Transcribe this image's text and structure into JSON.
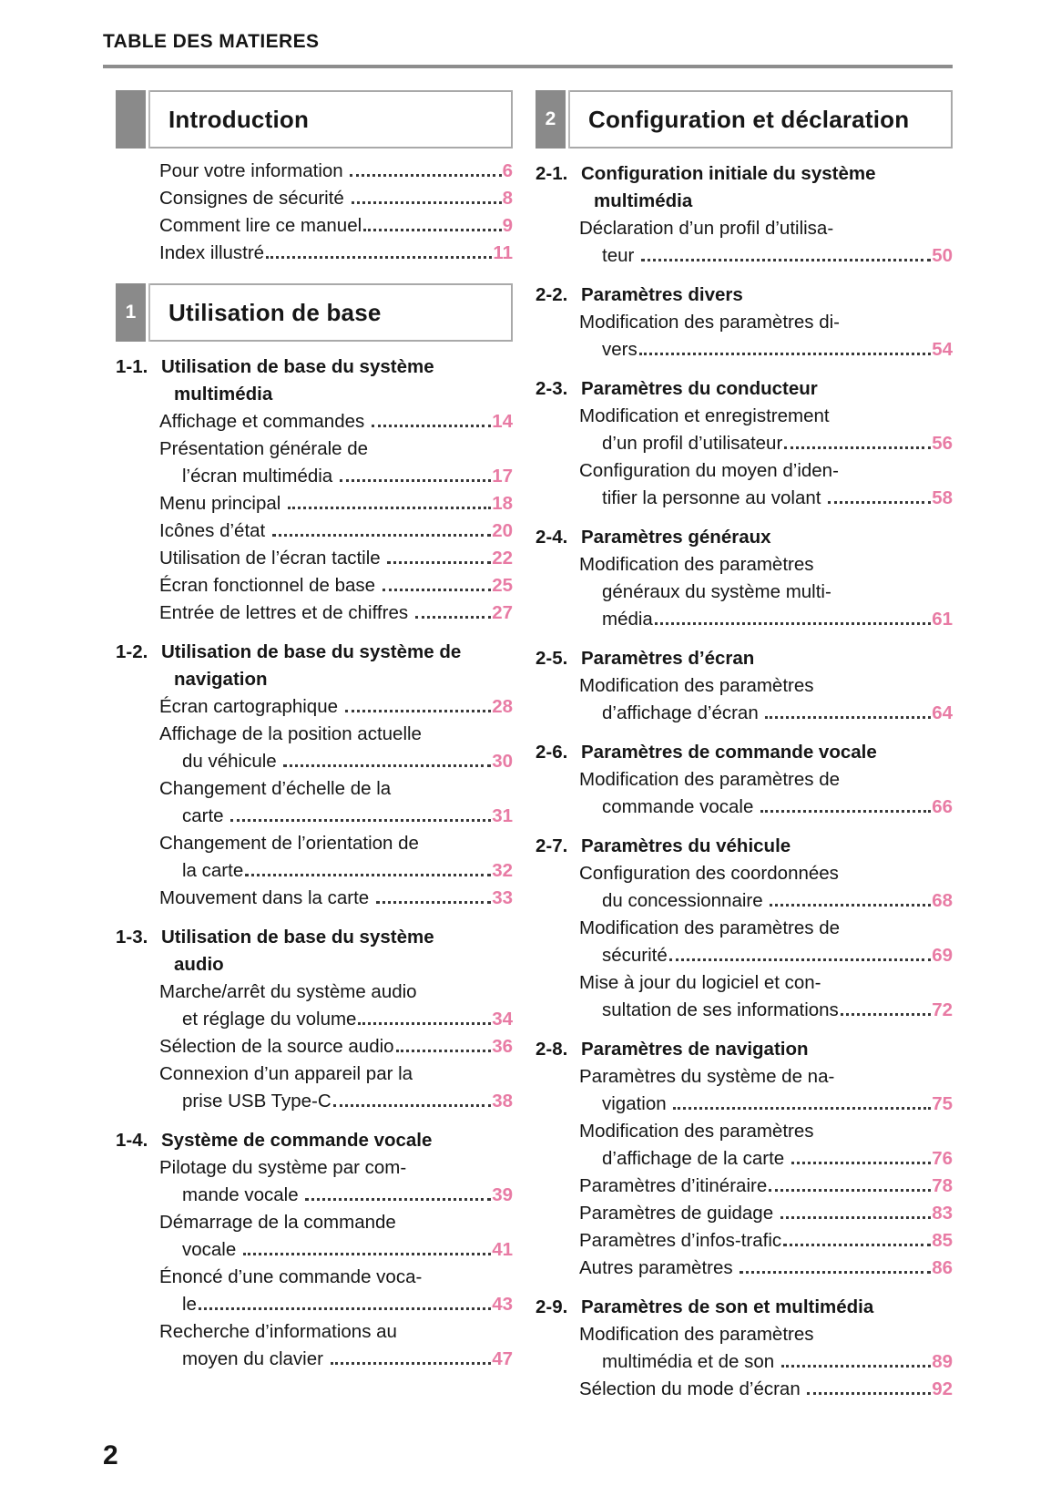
{
  "header": {
    "title": "TABLE DES MATIERES"
  },
  "footer": {
    "page_number": "2"
  },
  "colors": {
    "page_ref_pink": "#e87ba4",
    "tab_gray": "#8a8a8a",
    "rule_gray": "#8d8d8d"
  },
  "columns": [
    {
      "sections": [
        {
          "tab": "",
          "title": "Introduction",
          "blocks": [
            {
              "type": "entry",
              "lines": [
                "Pour votre information "
              ],
              "page": "6"
            },
            {
              "type": "entry",
              "lines": [
                "Consignes de sécurité "
              ],
              "page": "8"
            },
            {
              "type": "entry",
              "lines": [
                "Comment lire ce manuel"
              ],
              "page": "9"
            },
            {
              "type": "entry",
              "lines": [
                "Index illustré"
              ],
              "page": "11"
            }
          ]
        },
        {
          "tab": "1",
          "title": "Utilisation de base",
          "blocks": [
            {
              "type": "subheading",
              "num": "1-1.",
              "lines": [
                "Utilisation de base du système",
                "multimédia"
              ]
            },
            {
              "type": "entry",
              "lines": [
                "Affichage et commandes "
              ],
              "page": "14"
            },
            {
              "type": "entry",
              "lines": [
                "Présentation générale de",
                "l’écran multimédia "
              ],
              "page": "17"
            },
            {
              "type": "entry",
              "lines": [
                "Menu principal "
              ],
              "page": "18"
            },
            {
              "type": "entry",
              "lines": [
                "Icônes d’état "
              ],
              "page": "20"
            },
            {
              "type": "entry",
              "lines": [
                "Utilisation de l’écran tactile "
              ],
              "page": "22"
            },
            {
              "type": "entry",
              "lines": [
                "Écran fonctionnel de base "
              ],
              "page": "25"
            },
            {
              "type": "entry",
              "lines": [
                "Entrée de lettres et de chiffres "
              ],
              "page": "27"
            },
            {
              "type": "subheading",
              "num": "1-2.",
              "lines": [
                "Utilisation de base du système de",
                "navigation"
              ]
            },
            {
              "type": "entry",
              "lines": [
                "Écran cartographique "
              ],
              "page": "28"
            },
            {
              "type": "entry",
              "lines": [
                "Affichage de la position actuelle",
                "du véhicule "
              ],
              "page": "30"
            },
            {
              "type": "entry",
              "lines": [
                "Changement d’échelle de la",
                "carte "
              ],
              "page": "31"
            },
            {
              "type": "entry",
              "lines": [
                "Changement de l’orientation de",
                "la carte"
              ],
              "page": "32"
            },
            {
              "type": "entry",
              "lines": [
                "Mouvement dans la carte "
              ],
              "page": "33"
            },
            {
              "type": "subheading",
              "num": "1-3.",
              "lines": [
                "Utilisation de base du système",
                "audio"
              ]
            },
            {
              "type": "entry",
              "lines": [
                "Marche/arrêt du système audio",
                "et réglage du volume"
              ],
              "page": "34"
            },
            {
              "type": "entry",
              "lines": [
                "Sélection de la source audio"
              ],
              "page": "36"
            },
            {
              "type": "entry",
              "lines": [
                "Connexion d’un appareil par la",
                "prise USB Type-C"
              ],
              "page": "38"
            },
            {
              "type": "subheading",
              "num": "1-4.",
              "lines": [
                "Système de commande vocale"
              ]
            },
            {
              "type": "entry",
              "lines": [
                "Pilotage du système par com-",
                "mande vocale "
              ],
              "page": "39"
            },
            {
              "type": "entry",
              "lines": [
                "Démarrage de la commande",
                "vocale "
              ],
              "page": "41"
            },
            {
              "type": "entry",
              "lines": [
                "Énoncé d’une commande voca-",
                "le"
              ],
              "page": "43"
            },
            {
              "type": "entry",
              "lines": [
                "Recherche d’informations au",
                "moyen du clavier "
              ],
              "page": "47"
            }
          ]
        }
      ]
    },
    {
      "sections": [
        {
          "tab": "2",
          "title": "Configuration et déclaration",
          "blocks": [
            {
              "type": "subheading",
              "num": "2-1.",
              "lines": [
                "Configuration initiale du système",
                "multimédia"
              ]
            },
            {
              "type": "entry",
              "lines": [
                "Déclaration d’un profil d’utilisa-",
                "teur "
              ],
              "page": "50"
            },
            {
              "type": "subheading",
              "num": "2-2.",
              "lines": [
                "Paramètres divers"
              ]
            },
            {
              "type": "entry",
              "lines": [
                "Modification des paramètres di-",
                "vers"
              ],
              "page": "54"
            },
            {
              "type": "subheading",
              "num": "2-3.",
              "lines": [
                "Paramètres du conducteur"
              ]
            },
            {
              "type": "entry",
              "lines": [
                "Modification et enregistrement",
                "d’un profil d’utilisateur"
              ],
              "page": "56"
            },
            {
              "type": "entry",
              "lines": [
                "Configuration du moyen d’iden-",
                "tifier la personne au volant "
              ],
              "page": "58"
            },
            {
              "type": "subheading",
              "num": "2-4.",
              "lines": [
                "Paramètres généraux"
              ]
            },
            {
              "type": "entry",
              "lines": [
                "Modification des paramètres",
                "généraux du système multi-",
                "média"
              ],
              "page": "61"
            },
            {
              "type": "subheading",
              "num": "2-5.",
              "lines": [
                "Paramètres d’écran"
              ]
            },
            {
              "type": "entry",
              "lines": [
                "Modification des paramètres",
                "d’affichage d’écran "
              ],
              "page": "64"
            },
            {
              "type": "subheading",
              "num": "2-6.",
              "lines": [
                "Paramètres de commande vocale"
              ]
            },
            {
              "type": "entry",
              "lines": [
                "Modification des paramètres de",
                "commande vocale "
              ],
              "page": "66"
            },
            {
              "type": "subheading",
              "num": "2-7.",
              "lines": [
                "Paramètres du véhicule"
              ]
            },
            {
              "type": "entry",
              "lines": [
                "Configuration des coordonnées",
                "du concessionnaire "
              ],
              "page": "68"
            },
            {
              "type": "entry",
              "lines": [
                "Modification des paramètres de",
                "sécurité"
              ],
              "page": "69"
            },
            {
              "type": "entry",
              "lines": [
                "Mise à jour du logiciel et con-",
                "sultation de ses informations"
              ],
              "page": "72"
            },
            {
              "type": "subheading",
              "num": "2-8.",
              "lines": [
                "Paramètres de navigation"
              ]
            },
            {
              "type": "entry",
              "lines": [
                "Paramètres du système de na-",
                "vigation "
              ],
              "page": "75"
            },
            {
              "type": "entry",
              "lines": [
                "Modification des paramètres",
                "d’affichage de la carte "
              ],
              "page": "76"
            },
            {
              "type": "entry",
              "lines": [
                "Paramètres d’itinéraire"
              ],
              "page": "78"
            },
            {
              "type": "entry",
              "lines": [
                "Paramètres de guidage "
              ],
              "page": "83"
            },
            {
              "type": "entry",
              "lines": [
                "Paramètres d’infos-trafic"
              ],
              "page": "85"
            },
            {
              "type": "entry",
              "lines": [
                "Autres paramètres "
              ],
              "page": "86"
            },
            {
              "type": "subheading",
              "num": "2-9.",
              "lines": [
                "Paramètres de son et multimédia"
              ]
            },
            {
              "type": "entry",
              "lines": [
                "Modification des paramètres",
                "multimédia et de son "
              ],
              "page": "89"
            },
            {
              "type": "entry",
              "lines": [
                "Sélection du mode d’écran "
              ],
              "page": "92"
            }
          ]
        }
      ]
    }
  ]
}
